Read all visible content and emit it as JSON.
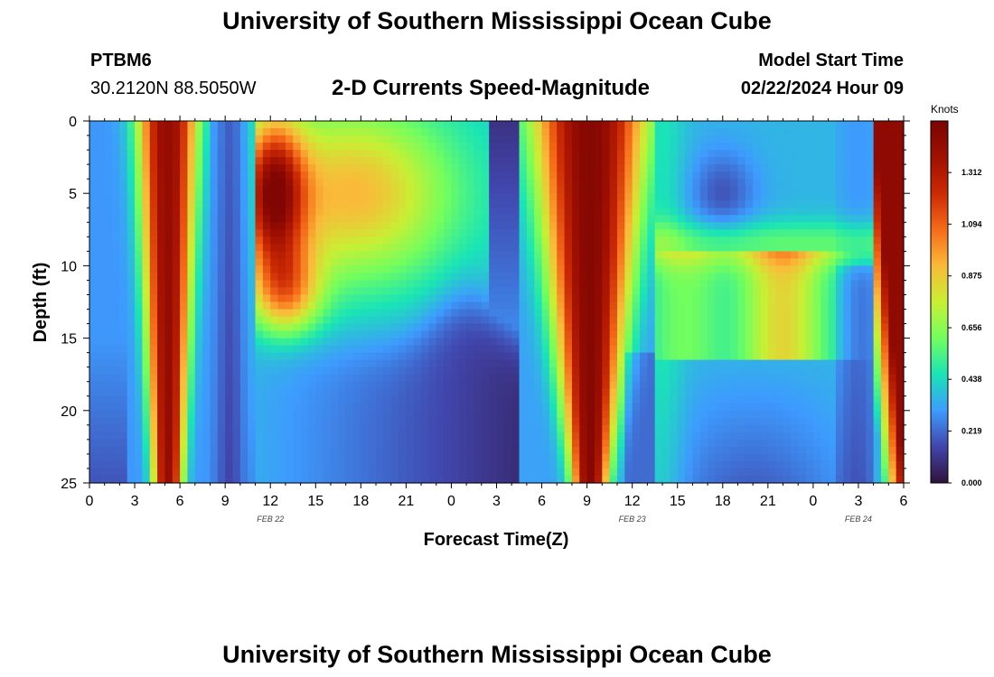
{
  "header": {
    "title": "University of Southern Mississippi Ocean Cube",
    "station": "PTBM6",
    "coordinates": "30.2120N  88.5050W",
    "subtitle": "2-D Currents Speed-Magnitude",
    "model_start_label": "Model Start Time",
    "model_start_value": "02/22/2024 Hour 09"
  },
  "footer": {
    "title": "University of Southern Mississippi Ocean Cube"
  },
  "chart_data": {
    "type": "heatmap",
    "title": "2-D Currents Speed-Magnitude",
    "xlabel": "Forecast Time(Z)",
    "ylabel": "Depth (ft)",
    "x_tick_labels": [
      "0",
      "3",
      "6",
      "9",
      "12",
      "15",
      "18",
      "21",
      "0",
      "3",
      "6",
      "9",
      "12",
      "15",
      "18",
      "21",
      "0",
      "3",
      "6"
    ],
    "x_range_hours": [
      0,
      54
    ],
    "y_tick_labels": [
      "0",
      "5",
      "10",
      "15",
      "20",
      "25"
    ],
    "y_range_ft": [
      0,
      25
    ],
    "date_labels": [
      {
        "text": "FEB 22",
        "hour": 12
      },
      {
        "text": "FEB 23",
        "hour": 36
      },
      {
        "text": "FEB 24",
        "hour": 51
      }
    ],
    "colorbar": {
      "label": "Knots",
      "range": [
        0,
        1.53
      ],
      "tick_labels": [
        "0.000",
        "0.219",
        "0.438",
        "0.656",
        "0.875",
        "1.094",
        "1.312"
      ],
      "tick_values": [
        0.0,
        0.219,
        0.438,
        0.656,
        0.875,
        1.094,
        1.312
      ]
    },
    "grid": false
  }
}
